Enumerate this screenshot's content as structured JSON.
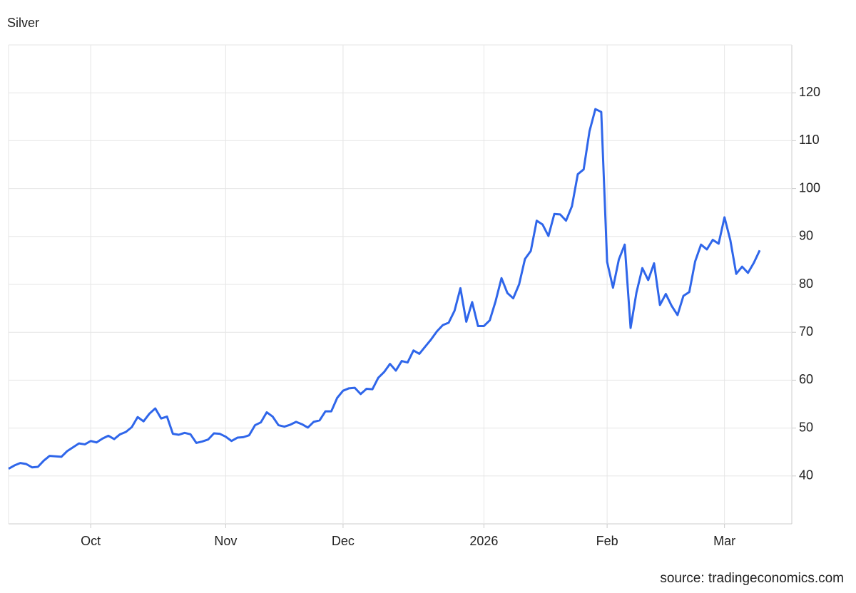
{
  "chart_data": {
    "type": "line",
    "title": "Silver",
    "source": "source: tradingeconomics.com",
    "categories": [
      null,
      null,
      null,
      null,
      null,
      null,
      null,
      null,
      null,
      null,
      null,
      null,
      null,
      null,
      "Oct",
      null,
      null,
      null,
      null,
      null,
      null,
      null,
      null,
      null,
      null,
      null,
      null,
      null,
      null,
      null,
      null,
      null,
      null,
      null,
      null,
      null,
      null,
      "Nov",
      null,
      null,
      null,
      null,
      null,
      null,
      null,
      null,
      null,
      null,
      null,
      null,
      null,
      null,
      null,
      null,
      null,
      null,
      null,
      "Dec",
      null,
      null,
      null,
      null,
      null,
      null,
      null,
      null,
      null,
      null,
      null,
      null,
      null,
      null,
      null,
      null,
      null,
      null,
      null,
      null,
      null,
      null,
      null,
      "2026",
      null,
      null,
      null,
      null,
      null,
      null,
      null,
      null,
      null,
      null,
      null,
      null,
      null,
      null,
      null,
      null,
      null,
      null,
      null,
      null,
      "Feb",
      null,
      null,
      null,
      null,
      null,
      null,
      null,
      null,
      null,
      null,
      null,
      null,
      null,
      null,
      null,
      null,
      null,
      null,
      null,
      "Mar",
      null,
      null,
      null,
      null,
      null,
      null
    ],
    "values": [
      41.5,
      42.2,
      42.7,
      42.5,
      41.8,
      41.9,
      43.2,
      44.2,
      44.1,
      44.0,
      45.2,
      46.0,
      46.8,
      46.6,
      47.3,
      47.0,
      47.8,
      48.4,
      47.7,
      48.7,
      49.2,
      50.2,
      52.3,
      51.4,
      53.0,
      54.1,
      52.0,
      52.4,
      48.8,
      48.6,
      49.0,
      48.7,
      46.9,
      47.2,
      47.6,
      48.9,
      48.8,
      48.2,
      47.3,
      48.0,
      48.1,
      48.5,
      50.6,
      51.2,
      53.3,
      52.4,
      50.6,
      50.3,
      50.7,
      51.3,
      50.8,
      50.1,
      51.3,
      51.6,
      53.5,
      53.5,
      56.3,
      57.8,
      58.3,
      58.4,
      57.1,
      58.2,
      58.1,
      60.5,
      61.7,
      63.4,
      62.0,
      64.0,
      63.7,
      66.2,
      65.5,
      67.0,
      68.5,
      70.2,
      71.5,
      72.0,
      74.5,
      79.2,
      72.2,
      76.3,
      71.3,
      71.3,
      72.5,
      76.5,
      81.3,
      78.2,
      77.1,
      80.0,
      85.3,
      87.0,
      93.3,
      92.5,
      90.1,
      94.7,
      94.6,
      93.3,
      96.3,
      103.0,
      104.0,
      112.0,
      116.6,
      116.0,
      84.7,
      79.3,
      85.2,
      88.3,
      70.9,
      78.3,
      83.4,
      80.9,
      84.4,
      75.7,
      78.0,
      75.5,
      73.6,
      77.6,
      78.4,
      84.8,
      88.3,
      87.3,
      89.3,
      88.5,
      94.0,
      89.2,
      82.2,
      83.7,
      82.4,
      84.5,
      87.1
    ],
    "color": "#2f66ea",
    "ylim": [
      30,
      130
    ],
    "yticks": [
      40,
      50,
      60,
      70,
      80,
      90,
      100,
      110,
      120
    ],
    "grid": true
  }
}
